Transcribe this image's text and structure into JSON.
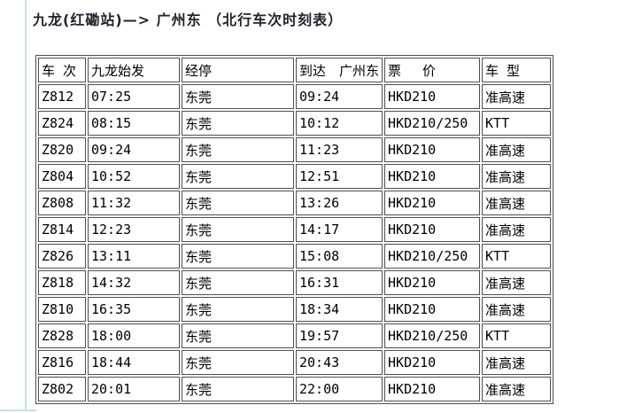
{
  "page": {
    "title": "九龙(红磡站)—> 广州东 （北行车次时刻表）"
  },
  "colors": {
    "accent_line": "#c3e2ec",
    "table_border": "#4f4f4f",
    "title_text": "#23232e",
    "cell_text": "#000000",
    "background": "#ffffff"
  },
  "table": {
    "headers": [
      "车 次",
      "九龙始发",
      "经停",
      "到达　广州东",
      "票　 价",
      "车 型"
    ],
    "rows": [
      [
        "Z812",
        "07:25",
        "东莞",
        "09:24",
        "HKD210",
        "准高速"
      ],
      [
        "Z824",
        "08:15",
        "东莞",
        "10:12",
        "HKD210/250",
        "KTT"
      ],
      [
        "Z820",
        "09:24",
        "东莞",
        "11:23",
        "HKD210",
        "准高速"
      ],
      [
        "Z804",
        "10:52",
        "东莞",
        "12:51",
        "HKD210",
        "准高速"
      ],
      [
        "Z808",
        "11:32",
        "东莞",
        "13:26",
        "HKD210",
        "准高速"
      ],
      [
        "Z814",
        "12:23",
        "东莞",
        "14:17",
        "HKD210",
        "准高速"
      ],
      [
        "Z826",
        "13:11",
        "东莞",
        "15:08",
        "HKD210/250",
        "KTT"
      ],
      [
        "Z818",
        "14:32",
        "东莞",
        "16:31",
        "HKD210",
        "准高速"
      ],
      [
        "Z810",
        "16:35",
        "东莞",
        "18:34",
        "HKD210",
        "准高速"
      ],
      [
        "Z828",
        "18:00",
        "东莞",
        "19:57",
        "HKD210/250",
        "KTT"
      ],
      [
        "Z816",
        "18:44",
        "东莞",
        "20:43",
        "HKD210",
        "准高速"
      ],
      [
        "Z802",
        "20:01",
        "东莞",
        "22:00",
        "HKD210",
        "准高速"
      ]
    ]
  }
}
